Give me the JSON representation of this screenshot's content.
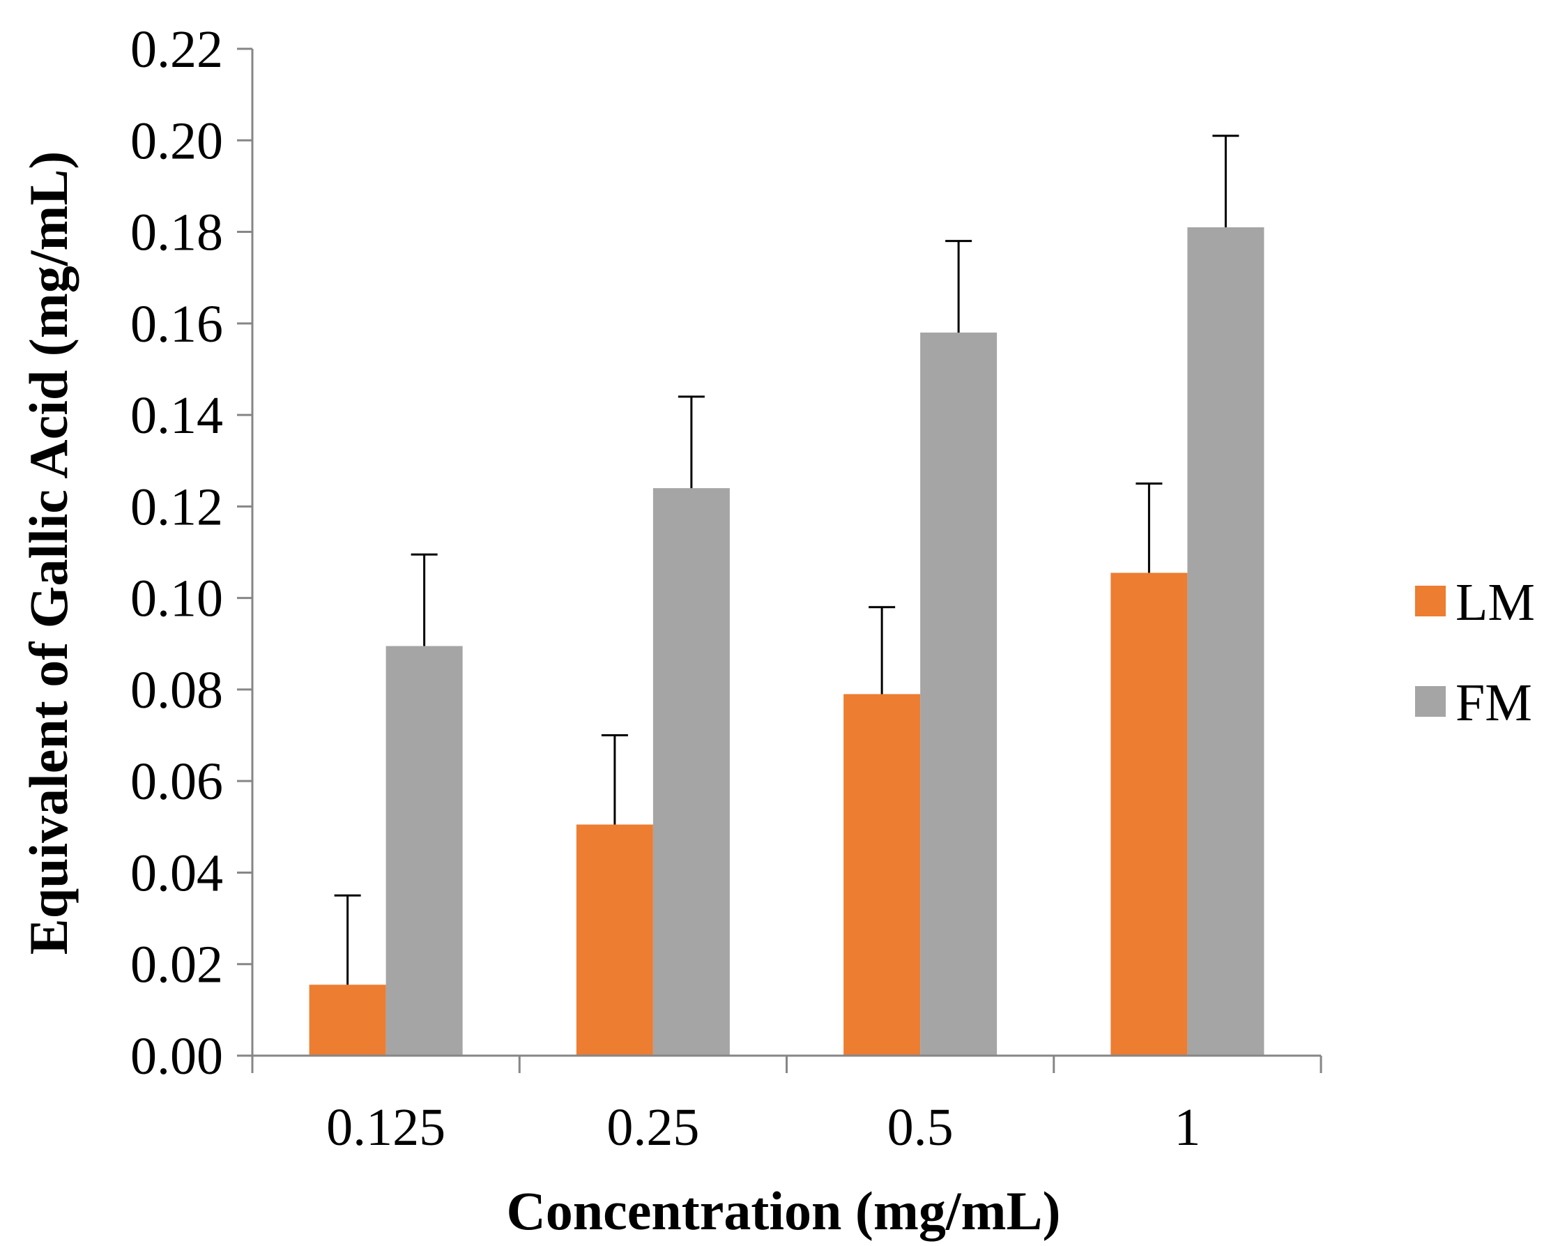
{
  "chart_data": {
    "type": "bar",
    "title": "",
    "xlabel": "Concentration (mg/mL)",
    "ylabel": "Equivalent of Gallic Acid (mg/mL)",
    "categories": [
      "0.125",
      "0.25",
      "0.5",
      "1"
    ],
    "ylim": [
      0,
      0.22
    ],
    "yticks": [
      "0.00",
      "0.02",
      "0.04",
      "0.06",
      "0.08",
      "0.10",
      "0.12",
      "0.14",
      "0.16",
      "0.18",
      "0.20",
      "0.22"
    ],
    "series": [
      {
        "name": "LM",
        "color": "#ED7D31",
        "values": [
          0.0155,
          0.0505,
          0.079,
          0.1055
        ],
        "errors": [
          0.0195,
          0.0195,
          0.019,
          0.0195
        ]
      },
      {
        "name": "FM",
        "color": "#A5A5A5",
        "values": [
          0.0895,
          0.124,
          0.158,
          0.181
        ],
        "errors": [
          0.02,
          0.02,
          0.02,
          0.02
        ]
      }
    ],
    "legend_position": "right",
    "grid": false
  }
}
